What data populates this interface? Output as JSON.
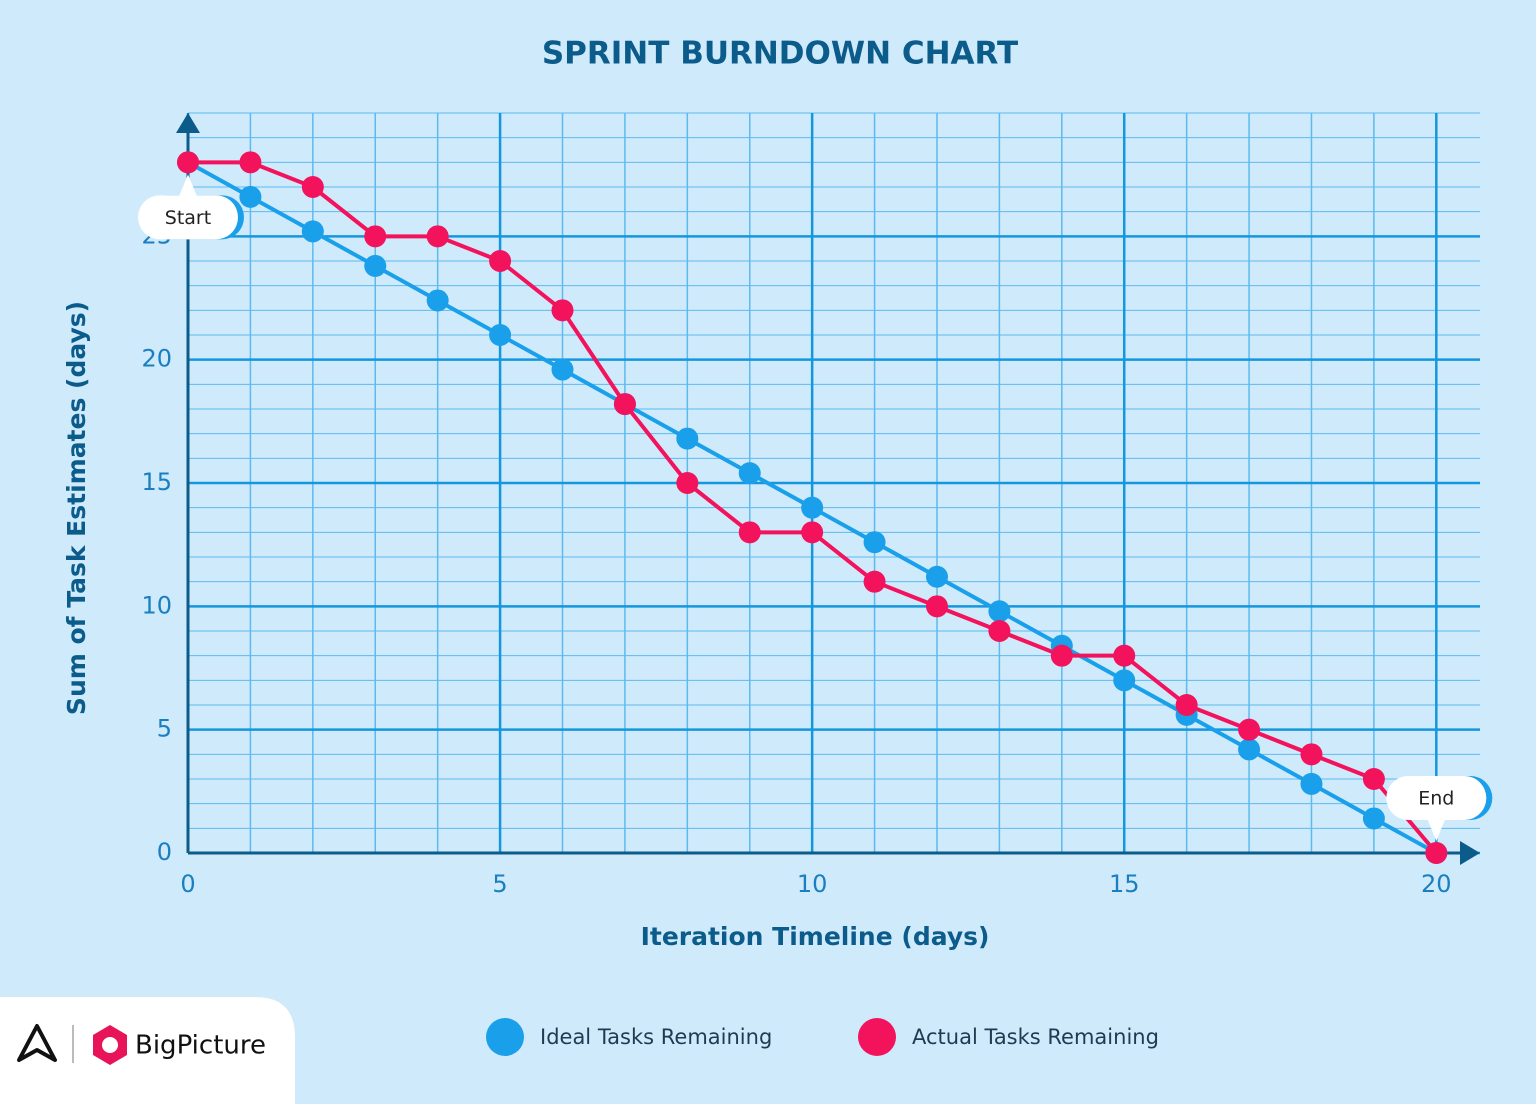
{
  "chart_data": {
    "type": "line",
    "title": "SPRINT BURNDOWN CHART",
    "x_label": "Iteration Timeline (days)",
    "y_label": "Sum of Task Estimates (days)",
    "x": [
      0,
      1,
      2,
      3,
      4,
      5,
      6,
      7,
      8,
      9,
      10,
      11,
      12,
      13,
      14,
      15,
      16,
      17,
      18,
      19,
      20
    ],
    "series": [
      {
        "name": "Ideal Tasks Remaining",
        "color": "#1aa0ea",
        "values": [
          28,
          26.6,
          25.2,
          23.8,
          22.4,
          21,
          19.6,
          18.2,
          16.8,
          15.4,
          14,
          12.6,
          11.2,
          9.8,
          8.4,
          7,
          5.6,
          4.2,
          2.8,
          1.4,
          0
        ]
      },
      {
        "name": "Actual Tasks Remaining",
        "color": "#f2135c",
        "values": [
          28,
          28,
          27,
          25,
          25,
          24,
          22,
          18.2,
          15,
          13,
          13,
          11,
          10,
          9,
          8,
          8,
          6,
          5,
          4,
          3,
          0
        ]
      }
    ],
    "xlim": [
      0,
      20.7
    ],
    "ylim": [
      0,
      30
    ],
    "xticks": [
      0,
      5,
      10,
      15,
      20
    ],
    "yticks": [
      0,
      5,
      10,
      15,
      20,
      25
    ],
    "minor_grid_step": 1,
    "grid": true,
    "annotations": [
      {
        "text": "Start",
        "x": 0,
        "y": 28
      },
      {
        "text": "End",
        "x": 20,
        "y": 0
      }
    ]
  },
  "logo_text": "BigPicture"
}
